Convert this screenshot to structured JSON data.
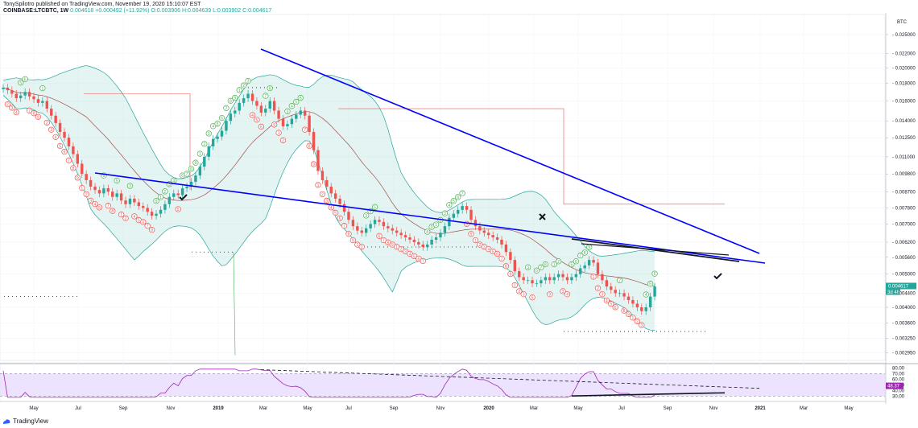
{
  "header": {
    "line1": "TonySpilotro published on TradingView.com, November 19, 2020 15:10:07 EST",
    "symbol": "COINBASE:LTCBTC, 1W",
    "price": "0.004618",
    "change": "+0.000492 (+11.92%)",
    "ohlc": "O:0.003906 H:0.004639 L:0.003902 C:0.004617"
  },
  "footer": {
    "brand": "TradingView"
  },
  "colors": {
    "up": "#26a69a",
    "down": "#ef5350",
    "trendline": "#0000ff",
    "bb_fill": "#b2dfdb",
    "rsi_fill": "#e1d0ff",
    "rsi_line": "#9c27b0",
    "td_sell": "#4caf50",
    "td_buy": "#ef5350"
  },
  "chart_data": [
    {
      "type": "candlestick",
      "symbol": "COINBASE:LTCBTC",
      "interval": "1W",
      "currency_label": "BTC",
      "y_scale": "log",
      "ylim": [
        0.0028,
        0.028
      ],
      "y_ticks": [
        "0.025000",
        "0.022000",
        "0.020000",
        "0.018000",
        "0.016000",
        "0.014000",
        "0.012500",
        "0.011000",
        "0.009800",
        "0.008700",
        "0.007800",
        "0.007000",
        "0.006200",
        "0.005600",
        "0.005000",
        "0.004400",
        "0.004000",
        "0.003600",
        "0.003250",
        "0.002950"
      ],
      "last_price_label": "0.004617",
      "countdown_label": "3d 4h",
      "x_ticks": [
        "May",
        "Jul",
        "Sep",
        "Nov",
        "2019",
        "Mar",
        "May",
        "Jul",
        "Sep",
        "Nov",
        "2020",
        "Mar",
        "May",
        "Jul",
        "Sep",
        "Nov",
        "2021",
        "Mar",
        "May"
      ],
      "x_ticks_bold": [
        "2019",
        "2020",
        "2021"
      ],
      "overlays": [
        "Bollinger Bands",
        "TD Sequential",
        "Falling wedge trendlines"
      ]
    },
    {
      "type": "line",
      "name": "RSI",
      "ylim": [
        25,
        82
      ],
      "y_ticks": [
        80,
        70,
        60,
        50,
        40,
        30
      ],
      "overbought": 70,
      "oversold": 30,
      "current_label": "48.37"
    }
  ]
}
